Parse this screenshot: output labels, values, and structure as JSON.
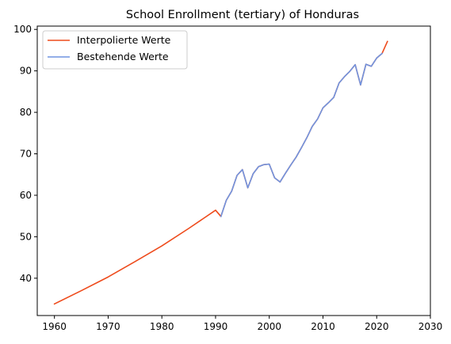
{
  "chart_data": {
    "type": "line",
    "title": "School Enrollment (tertiary) of Honduras",
    "xlabel": "",
    "ylabel": "",
    "xlim": [
      1956.8,
      2030
    ],
    "ylim": [
      31,
      100.8
    ],
    "x_ticks": [
      1960,
      1970,
      1980,
      1990,
      2000,
      2010,
      2020,
      2030
    ],
    "y_ticks": [
      40,
      50,
      60,
      70,
      80,
      90,
      100
    ],
    "grid": false,
    "legend_position": "top-left",
    "series": [
      {
        "name": "Interpolierte Werte",
        "color": "#ee4b1c",
        "points": [
          [
            1960,
            33.8
          ],
          [
            1965,
            37.0
          ],
          [
            1970,
            40.3
          ],
          [
            1975,
            44.0
          ],
          [
            1980,
            47.8
          ],
          [
            1985,
            52.0
          ],
          [
            1990,
            56.4
          ],
          [
            1991,
            54.9
          ],
          [
            1992,
            58.8
          ],
          [
            1993,
            61.0
          ],
          [
            1994,
            64.8
          ],
          [
            1995,
            66.2
          ],
          [
            1996,
            61.8
          ],
          [
            1997,
            65.2
          ],
          [
            1998,
            66.9
          ],
          [
            1999,
            67.4
          ],
          [
            2000,
            67.5
          ],
          [
            2001,
            64.2
          ],
          [
            2002,
            63.2
          ],
          [
            2003,
            65.3
          ],
          [
            2004,
            67.3
          ],
          [
            2005,
            69.2
          ],
          [
            2006,
            71.5
          ],
          [
            2007,
            73.9
          ],
          [
            2008,
            76.6
          ],
          [
            2009,
            78.4
          ],
          [
            2010,
            81.1
          ],
          [
            2011,
            82.3
          ],
          [
            2012,
            83.6
          ],
          [
            2013,
            87.1
          ],
          [
            2014,
            88.6
          ],
          [
            2015,
            89.9
          ],
          [
            2016,
            91.5
          ],
          [
            2017,
            86.6
          ],
          [
            2018,
            91.6
          ],
          [
            2019,
            91.1
          ],
          [
            2020,
            93.1
          ],
          [
            2021,
            94.2
          ],
          [
            2022,
            97.1
          ]
        ]
      },
      {
        "name": "Bestehende Werte",
        "color": "#6f94e1",
        "points": [
          [
            1991,
            54.9
          ],
          [
            1992,
            58.8
          ],
          [
            1993,
            61.0
          ],
          [
            1994,
            64.8
          ],
          [
            1995,
            66.2
          ],
          [
            1996,
            61.8
          ],
          [
            1997,
            65.2
          ],
          [
            1998,
            66.9
          ],
          [
            1999,
            67.4
          ],
          [
            2000,
            67.5
          ],
          [
            2001,
            64.2
          ],
          [
            2002,
            63.2
          ],
          [
            2003,
            65.3
          ],
          [
            2004,
            67.3
          ],
          [
            2005,
            69.2
          ],
          [
            2006,
            71.5
          ],
          [
            2007,
            73.9
          ],
          [
            2008,
            76.6
          ],
          [
            2009,
            78.4
          ],
          [
            2010,
            81.1
          ],
          [
            2011,
            82.3
          ],
          [
            2012,
            83.6
          ],
          [
            2013,
            87.1
          ],
          [
            2014,
            88.6
          ],
          [
            2015,
            89.9
          ],
          [
            2016,
            91.5
          ],
          [
            2017,
            86.6
          ],
          [
            2018,
            91.6
          ],
          [
            2019,
            91.1
          ],
          [
            2020,
            93.1
          ],
          [
            2021,
            94.2
          ]
        ]
      }
    ]
  }
}
